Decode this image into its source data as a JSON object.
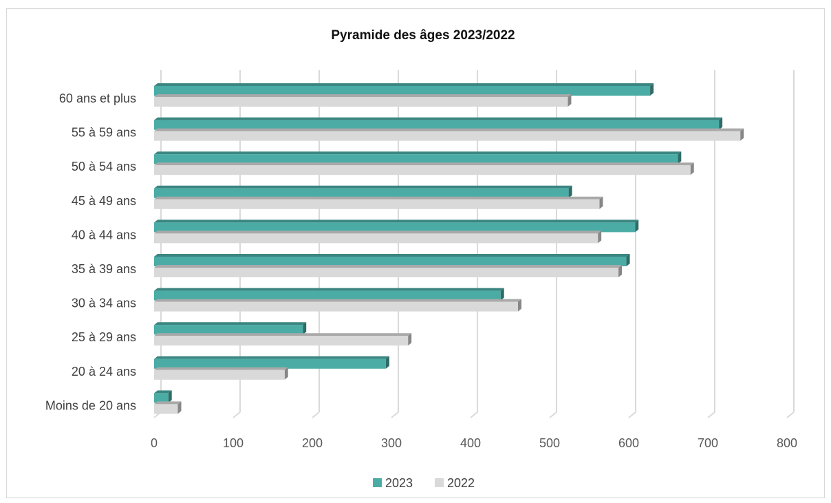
{
  "chart_data": {
    "type": "bar",
    "orientation": "horizontal",
    "style": "3d-clustered",
    "title": "Pyramide des âges 2023/2022",
    "xlabel": "",
    "ylabel": "",
    "xlim": [
      0,
      800
    ],
    "x_ticks": [
      0,
      100,
      200,
      300,
      400,
      500,
      600,
      700,
      800
    ],
    "grid": "vertical",
    "legend_position": "bottom",
    "categories": [
      "Moins de 20 ans",
      "20 à 24 ans",
      "25 à 29 ans",
      "30 à 34 ans",
      "35 à 39 ans",
      "40 à 44 ans",
      "45 à 49 ans",
      "50 à 54 ans",
      "55 à 59 ans",
      "60 ans et plus"
    ],
    "series": [
      {
        "name": "2023",
        "color": "#4BACA6",
        "values": [
          18,
          293,
          188,
          438,
          597,
          608,
          524,
          662,
          714,
          627
        ]
      },
      {
        "name": "2022",
        "color": "#D9D9D9",
        "values": [
          30,
          165,
          321,
          460,
          587,
          561,
          563,
          678,
          741,
          523
        ]
      }
    ]
  }
}
